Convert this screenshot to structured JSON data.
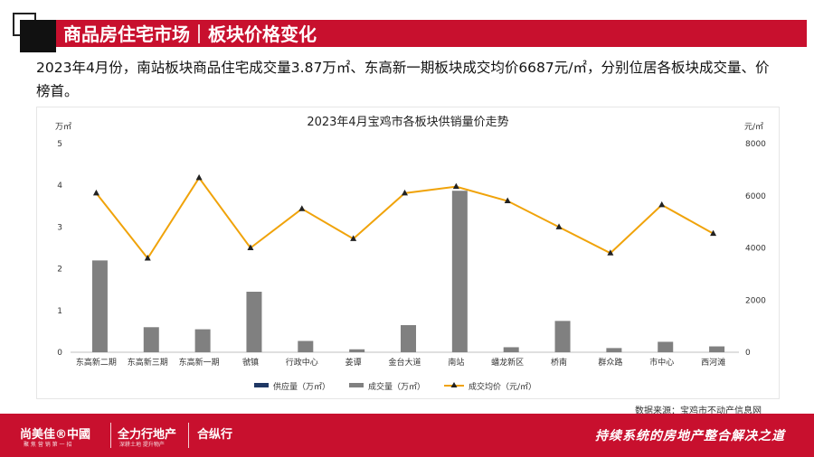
{
  "header": {
    "title": "商品房住宅市场｜板块价格变化"
  },
  "summary": "2023年4月份，南站板块商品住宅成交量3.87万㎡、东高新一期板块成交均价6687元/㎡，分别位居各板块成交量、价榜首。",
  "chart_data": {
    "type": "bar",
    "title": "2023年4月宝鸡市各板块供销量价走势",
    "y_left_unit": "万㎡",
    "y_right_unit": "元/㎡",
    "ylim_left": [
      0,
      5
    ],
    "yticks_left": [
      "0",
      "1",
      "2",
      "3",
      "4",
      "5"
    ],
    "ylim_right": [
      0,
      8000
    ],
    "yticks_right": [
      "0",
      "2000",
      "4000",
      "6000",
      "8000"
    ],
    "categories": [
      "东高新二期",
      "东高新三期",
      "东高新一期",
      "虢镇",
      "行政中心",
      "姜谭",
      "金台大道",
      "南站",
      "蟠龙新区",
      "桥南",
      "群众路",
      "市中心",
      "西河滩"
    ],
    "series": [
      {
        "name": "供应量（万㎡）",
        "type": "bar",
        "axis": "left",
        "color": "#1f3864",
        "values": [
          0,
          0,
          0,
          0,
          0,
          0,
          0,
          0,
          0,
          0,
          0,
          0,
          0
        ]
      },
      {
        "name": "成交量（万㎡）",
        "type": "bar",
        "axis": "left",
        "color": "#808080",
        "values": [
          2.2,
          0.6,
          0.55,
          1.45,
          0.27,
          0.07,
          0.65,
          3.87,
          0.12,
          0.75,
          0.1,
          0.25,
          0.14
        ]
      },
      {
        "name": "成交均价（元/㎡）",
        "type": "line",
        "axis": "right",
        "color": "#f0a30a",
        "values": [
          6100,
          3600,
          6687,
          4000,
          5500,
          4350,
          6100,
          6350,
          5800,
          4800,
          3800,
          5650,
          4550
        ]
      }
    ],
    "legend_position": "bottom",
    "grid": false
  },
  "source": "数据来源：宝鸡市不动产信息网",
  "footer": {
    "brand1": "尚美佳®中國",
    "brand1_sub": "聚 焦 营 销 第 一 招",
    "brand2": "全力行地产",
    "brand2_sub": "深耕土地 提升物产",
    "brand3": "合纵行",
    "slogan": "持续系统的房地产整合解决之道"
  }
}
